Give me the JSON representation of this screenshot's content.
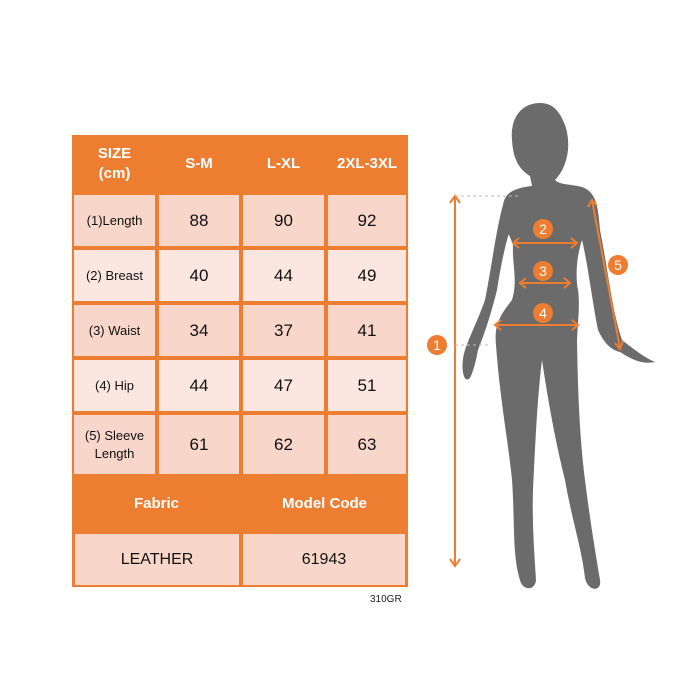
{
  "table": {
    "header": [
      "SIZE\n(cm)",
      "S-M",
      "L-XL",
      "2XL-3XL"
    ],
    "rows": [
      {
        "label": "(1)Length",
        "values": [
          "88",
          "90",
          "92"
        ]
      },
      {
        "label": "(2) Breast",
        "values": [
          "40",
          "44",
          "49"
        ]
      },
      {
        "label": "(3) Waist",
        "values": [
          "34",
          "37",
          "41"
        ]
      },
      {
        "label": "(4) Hip",
        "values": [
          "44",
          "47",
          "51"
        ]
      },
      {
        "label": "(5) Sleeve Length",
        "values": [
          "61",
          "62",
          "63"
        ]
      }
    ],
    "footer_headers": [
      "Fabric",
      "Model Code"
    ],
    "footer_values": [
      "LEATHER",
      "61943"
    ]
  },
  "product_code": "310GR",
  "figure": {
    "markers": [
      "1",
      "2",
      "3",
      "4",
      "5"
    ]
  },
  "colors": {
    "accent": "#ed7d31",
    "row_dark": "#f8d6c9",
    "row_light": "#fbe7df",
    "silhouette": "#6b6b6b"
  }
}
